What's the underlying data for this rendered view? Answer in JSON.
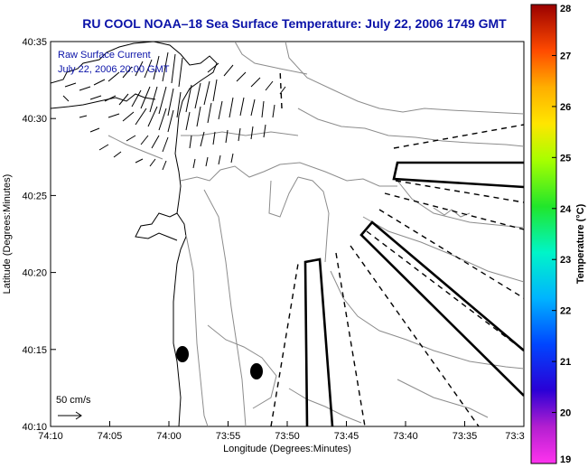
{
  "title": "RU COOL  NOAA–18  Sea Surface Temperature:  July 22, 2006 1749 GMT",
  "annotation": {
    "line1": "Raw Surface Current",
    "line2": "July 22, 2006 20:00 GMT"
  },
  "scale_arrow_label": "50 cm/s",
  "x_axis": {
    "label": "Longitude (Degrees:Minutes)",
    "ticks": [
      "74:10",
      "74:05",
      "74:00",
      "73:55",
      "73:50",
      "73:45",
      "73:40",
      "73:35",
      "73:3"
    ]
  },
  "y_axis": {
    "label": "Latitude (Degrees:Minutes)",
    "ticks": [
      "40:35",
      "40:30",
      "40:25",
      "40:20",
      "40:15",
      "40:10"
    ]
  },
  "colorbar": {
    "label": "Temperature (°C)",
    "ticks": [
      "28",
      "27",
      "26",
      "25",
      "24",
      "23",
      "22",
      "21",
      "20",
      "19"
    ],
    "min": 19,
    "max": 28
  },
  "colors": {
    "title": "#0a12a8",
    "annotation": "#0a12a8",
    "contour": "#8c8c8c",
    "land_outline": "#000000"
  }
}
